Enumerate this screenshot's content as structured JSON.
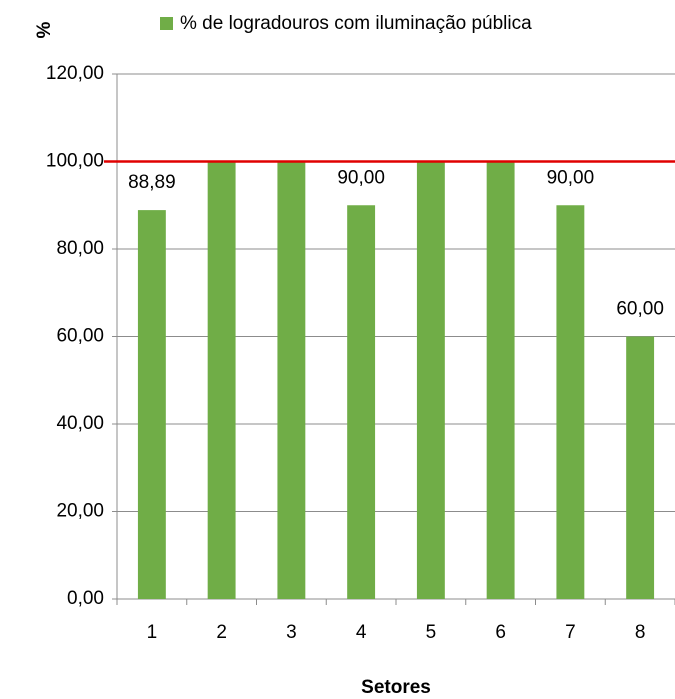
{
  "chart_data": {
    "type": "bar",
    "y_label": "%",
    "x_label": "Setores",
    "categories": [
      "1",
      "2",
      "3",
      "4",
      "5",
      "6",
      "7",
      "8"
    ],
    "series": [
      {
        "name": "% de logradouros com iluminação pública",
        "color": "#70ad47",
        "values": [
          88.89,
          100,
          100,
          90,
          100,
          100,
          90,
          60
        ],
        "value_labels": [
          "88,89",
          null,
          null,
          "90,00",
          null,
          null,
          "90,00",
          "60,00"
        ]
      }
    ],
    "ylim": [
      0,
      120
    ],
    "yticks": [
      {
        "value": 0,
        "label": "0,00"
      },
      {
        "value": 20,
        "label": "20,00"
      },
      {
        "value": 40,
        "label": "40,00"
      },
      {
        "value": 60,
        "label": "60,00"
      },
      {
        "value": 80,
        "label": "80,00"
      },
      {
        "value": 100,
        "label": "100,00"
      },
      {
        "value": 120,
        "label": "120,00"
      }
    ],
    "grid": true,
    "reference_line": {
      "value": 100,
      "color": "#e00000"
    },
    "legend": "top"
  }
}
